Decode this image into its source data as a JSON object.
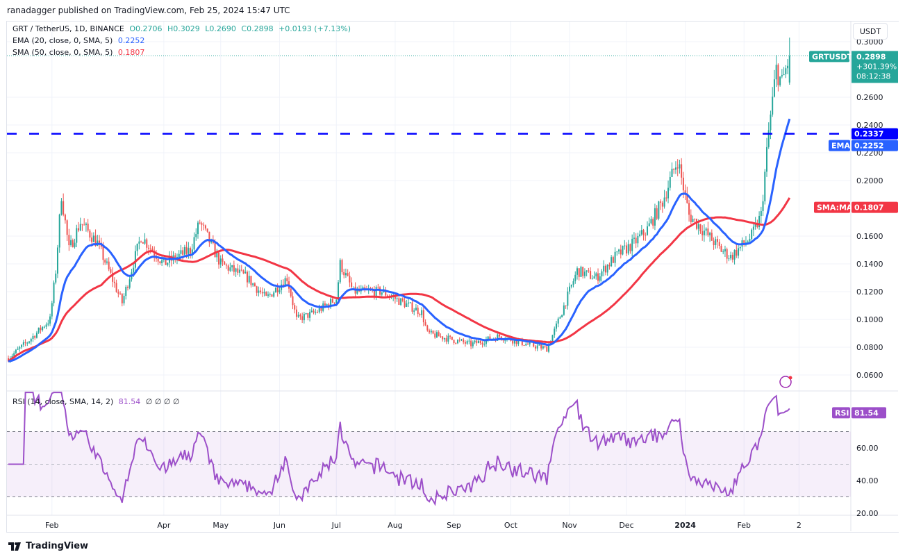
{
  "publisher_line": "ranadagger published on TradingView.com, Feb 25, 2024 15:47 UTC",
  "legend": {
    "symbol": "GRT / TetherUS, 1D, BINANCE",
    "open": "O0.2706",
    "high": "H0.3029",
    "low": "L0.2690",
    "close": "C0.2898",
    "change": "+0.0193 (+7.13%)",
    "ema_label": "EMA (20, close, 0, SMA, 5)",
    "ema_value": "0.2252",
    "sma_label": "SMA (50, close, 0, SMA, 5)",
    "sma_value": "0.1807",
    "rsi_label": "RSI (14, close, SMA, 14, 2)",
    "rsi_value": "81.54",
    "rsi_extra": "∅ ∅ ∅ ∅"
  },
  "currency_button": "USDT",
  "footer": {
    "logo_text": "TradingView"
  },
  "colors": {
    "up": "#26a69a",
    "down": "#ef5350",
    "ema": "#2962ff",
    "sma": "#f23645",
    "rsi": "#9c4fc9",
    "resistance": "#0000ff"
  },
  "chart_data": {
    "type": "candlestick",
    "symbol": "GRTUSDT",
    "price_axis": {
      "ticks": [
        "0.0600",
        "0.0800",
        "0.1000",
        "0.1200",
        "0.1400",
        "0.1600",
        "0.2000",
        "0.2200",
        "0.2400",
        "0.2600",
        "0.3000"
      ],
      "range": [
        0.05,
        0.31
      ]
    },
    "time_axis": {
      "ticks": [
        {
          "label": "Feb",
          "date": "2023-02-01"
        },
        {
          "label": "Apr",
          "date": "2023-04-01"
        },
        {
          "label": "May",
          "date": "2023-05-01"
        },
        {
          "label": "Jun",
          "date": "2023-06-01"
        },
        {
          "label": "Jul",
          "date": "2023-07-01"
        },
        {
          "label": "Aug",
          "date": "2023-08-01"
        },
        {
          "label": "Sep",
          "date": "2023-09-01"
        },
        {
          "label": "Oct",
          "date": "2023-10-01"
        },
        {
          "label": "Nov",
          "date": "2023-11-01"
        },
        {
          "label": "Dec",
          "date": "2023-12-01"
        },
        {
          "label": "2024",
          "date": "2024-01-01"
        },
        {
          "label": "Feb",
          "date": "2024-02-01"
        },
        {
          "label": "2",
          "date": "2024-03-01"
        }
      ]
    },
    "close_keypoints": [
      [
        "2023-01-09",
        0.072
      ],
      [
        "2023-01-20",
        0.085
      ],
      [
        "2023-01-31",
        0.1
      ],
      [
        "2023-02-03",
        0.135
      ],
      [
        "2023-02-06",
        0.19
      ],
      [
        "2023-02-10",
        0.15
      ],
      [
        "2023-02-16",
        0.17
      ],
      [
        "2023-02-25",
        0.155
      ],
      [
        "2023-03-10",
        0.112
      ],
      [
        "2023-03-20",
        0.16
      ],
      [
        "2023-04-01",
        0.14
      ],
      [
        "2023-04-15",
        0.15
      ],
      [
        "2023-04-20",
        0.17
      ],
      [
        "2023-05-01",
        0.14
      ],
      [
        "2023-05-15",
        0.13
      ],
      [
        "2023-05-25",
        0.115
      ],
      [
        "2023-06-05",
        0.13
      ],
      [
        "2023-06-10",
        0.1
      ],
      [
        "2023-06-20",
        0.105
      ],
      [
        "2023-07-01",
        0.115
      ],
      [
        "2023-07-03",
        0.14
      ],
      [
        "2023-07-10",
        0.12
      ],
      [
        "2023-07-25",
        0.12
      ],
      [
        "2023-08-15",
        0.105
      ],
      [
        "2023-08-18",
        0.09
      ],
      [
        "2023-09-10",
        0.082
      ],
      [
        "2023-09-25",
        0.088
      ],
      [
        "2023-10-10",
        0.082
      ],
      [
        "2023-10-20",
        0.079
      ],
      [
        "2023-10-25",
        0.095
      ],
      [
        "2023-11-05",
        0.135
      ],
      [
        "2023-11-15",
        0.13
      ],
      [
        "2023-11-25",
        0.145
      ],
      [
        "2023-12-05",
        0.155
      ],
      [
        "2023-12-12",
        0.165
      ],
      [
        "2023-12-20",
        0.185
      ],
      [
        "2023-12-28",
        0.215
      ],
      [
        "2024-01-03",
        0.175
      ],
      [
        "2024-01-10",
        0.165
      ],
      [
        "2024-01-20",
        0.15
      ],
      [
        "2024-01-25",
        0.145
      ],
      [
        "2024-02-05",
        0.16
      ],
      [
        "2024-02-10",
        0.175
      ],
      [
        "2024-02-14",
        0.235
      ],
      [
        "2024-02-18",
        0.28
      ],
      [
        "2024-02-21",
        0.27
      ],
      [
        "2024-02-25",
        0.2898
      ]
    ],
    "last_candle": {
      "open": 0.2706,
      "high": 0.3029,
      "low": 0.269,
      "close": 0.2898
    },
    "indicators": {
      "ema_period": 20,
      "sma_period": 50,
      "rsi_period": 14
    },
    "horizontal_line": {
      "price": 0.2337,
      "label": "0.2337",
      "style": "dashed"
    },
    "price_labels": [
      {
        "tag": "GRTUSDT",
        "value": "0.2898",
        "sub1": "+301.39%",
        "sub2": "08:12:38"
      },
      {
        "tag": "EMA",
        "value": "0.2252"
      },
      {
        "tag": "SMA:MA",
        "value": "0.1807"
      }
    ],
    "rsi_axis": {
      "ticks": [
        "20.00",
        "40.00",
        "60.00"
      ],
      "range": [
        16,
        96
      ],
      "bands": [
        30,
        70
      ],
      "mid": 50
    },
    "rsi_label": {
      "tag": "RSI",
      "value": "81.54"
    }
  }
}
